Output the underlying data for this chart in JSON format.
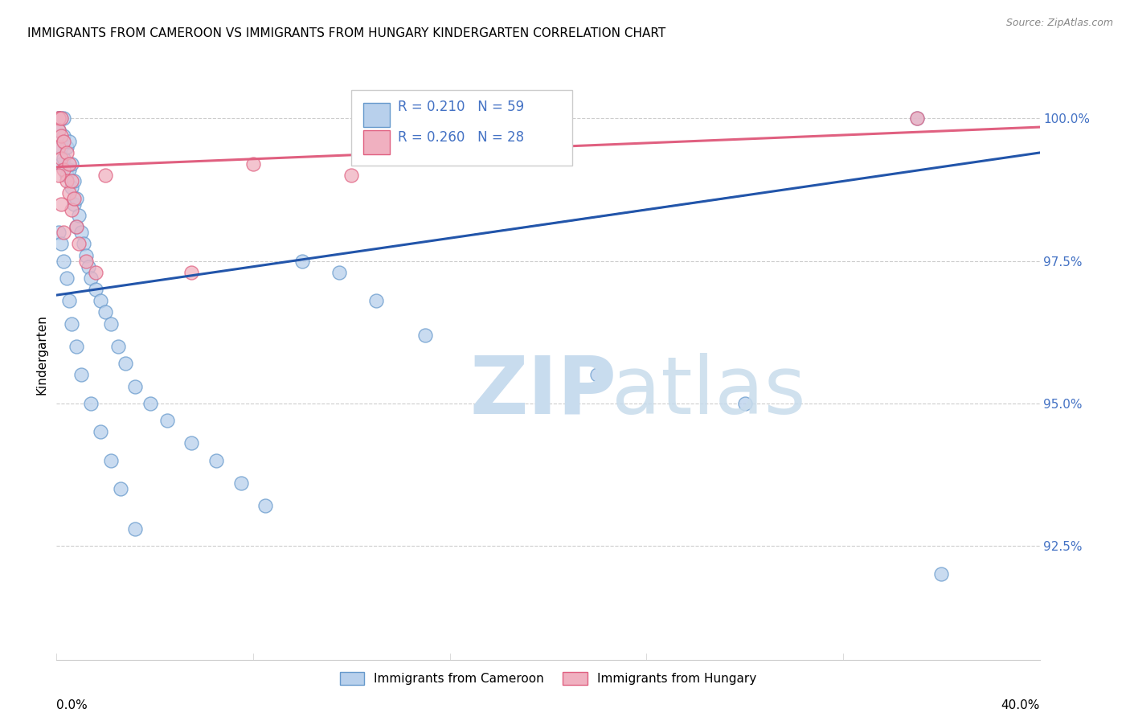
{
  "title": "IMMIGRANTS FROM CAMEROON VS IMMIGRANTS FROM HUNGARY KINDERGARTEN CORRELATION CHART",
  "source": "Source: ZipAtlas.com",
  "ylabel": "Kindergarten",
  "xlim": [
    0.0,
    0.4
  ],
  "ylim": [
    90.5,
    101.2
  ],
  "ytick_positions": [
    92.5,
    95.0,
    97.5,
    100.0
  ],
  "ytick_labels": [
    "92.5%",
    "95.0%",
    "97.5%",
    "100.0%"
  ],
  "legend1_label": "R = 0.210   N = 59",
  "legend2_label": "R = 0.260   N = 28",
  "blue_line_color": "#2255AA",
  "pink_line_color": "#E06080",
  "blue_scatter_face": "#B8D0EC",
  "blue_scatter_edge": "#6699CC",
  "pink_scatter_face": "#F0B0C0",
  "pink_scatter_edge": "#E06080",
  "legend_text_color": "#4472C4",
  "watermark_zip_color": "#C8DCEE",
  "watermark_atlas_color": "#C8DCEC",
  "blue_line_x0": 0.0,
  "blue_line_y0": 96.9,
  "blue_line_x1": 0.4,
  "blue_line_y1": 99.4,
  "pink_line_x0": 0.0,
  "pink_line_y0": 99.15,
  "pink_line_x1": 0.4,
  "pink_line_y1": 99.85,
  "blue_x": [
    0.001,
    0.001,
    0.001,
    0.002,
    0.002,
    0.002,
    0.003,
    0.003,
    0.003,
    0.004,
    0.004,
    0.005,
    0.005,
    0.006,
    0.006,
    0.007,
    0.007,
    0.008,
    0.008,
    0.009,
    0.01,
    0.011,
    0.012,
    0.013,
    0.014,
    0.016,
    0.018,
    0.02,
    0.022,
    0.025,
    0.028,
    0.032,
    0.038,
    0.045,
    0.055,
    0.065,
    0.075,
    0.085,
    0.1,
    0.115,
    0.13,
    0.15,
    0.22,
    0.28,
    0.35,
    0.001,
    0.002,
    0.003,
    0.004,
    0.005,
    0.006,
    0.008,
    0.01,
    0.014,
    0.018,
    0.022,
    0.026,
    0.032,
    0.36
  ],
  "blue_y": [
    100.0,
    100.0,
    99.8,
    100.0,
    99.5,
    99.2,
    100.0,
    99.7,
    99.3,
    99.5,
    99.0,
    99.6,
    99.1,
    99.2,
    98.8,
    98.9,
    98.5,
    98.6,
    98.1,
    98.3,
    98.0,
    97.8,
    97.6,
    97.4,
    97.2,
    97.0,
    96.8,
    96.6,
    96.4,
    96.0,
    95.7,
    95.3,
    95.0,
    94.7,
    94.3,
    94.0,
    93.6,
    93.2,
    97.5,
    97.3,
    96.8,
    96.2,
    95.5,
    95.0,
    100.0,
    98.0,
    97.8,
    97.5,
    97.2,
    96.8,
    96.4,
    96.0,
    95.5,
    95.0,
    94.5,
    94.0,
    93.5,
    92.8,
    92.0
  ],
  "pink_x": [
    0.001,
    0.001,
    0.001,
    0.001,
    0.002,
    0.002,
    0.002,
    0.003,
    0.003,
    0.004,
    0.004,
    0.005,
    0.005,
    0.006,
    0.006,
    0.007,
    0.008,
    0.009,
    0.012,
    0.016,
    0.02,
    0.055,
    0.08,
    0.12,
    0.35,
    0.001,
    0.002,
    0.003
  ],
  "pink_y": [
    100.0,
    100.0,
    99.8,
    99.5,
    100.0,
    99.7,
    99.3,
    99.6,
    99.1,
    99.4,
    98.9,
    99.2,
    98.7,
    98.9,
    98.4,
    98.6,
    98.1,
    97.8,
    97.5,
    97.3,
    99.0,
    97.3,
    99.2,
    99.0,
    100.0,
    99.0,
    98.5,
    98.0
  ]
}
